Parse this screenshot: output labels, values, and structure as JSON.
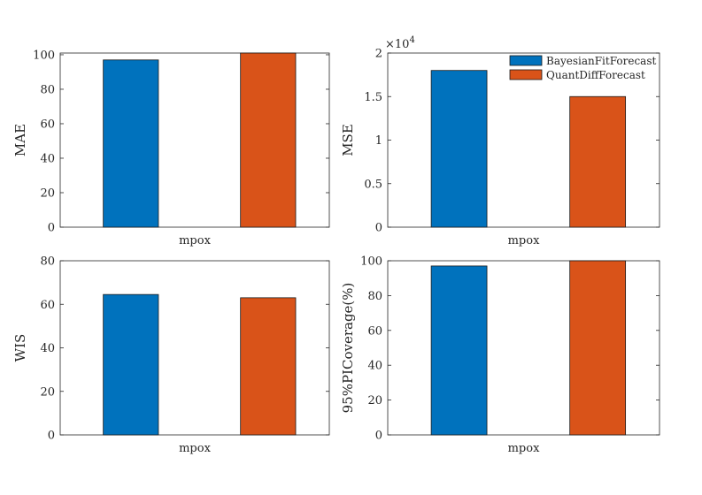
{
  "figure": {
    "legend": [
      {
        "name": "BayesianFitForecast",
        "color": "#0072BD"
      },
      {
        "name": "QuantDiffForecast",
        "color": "#D95319"
      }
    ]
  },
  "chart_data": [
    {
      "type": "bar",
      "title": "",
      "xlabel": "mpox",
      "ylabel": "MAE",
      "categories": [
        "mpox"
      ],
      "series": [
        {
          "name": "BayesianFitForecast",
          "values": [
            97
          ]
        },
        {
          "name": "QuantDiffForecast",
          "values": [
            101
          ]
        }
      ],
      "ylim": [
        0,
        101
      ],
      "yticks": [
        0,
        20,
        40,
        60,
        80,
        100
      ],
      "ytick_labels": [
        "0",
        "20",
        "40",
        "60",
        "80",
        "100"
      ]
    },
    {
      "type": "bar",
      "title": "",
      "xlabel": "mpox",
      "ylabel": "MSE",
      "categories": [
        "mpox"
      ],
      "series": [
        {
          "name": "BayesianFitForecast",
          "values": [
            18000
          ]
        },
        {
          "name": "QuantDiffForecast",
          "values": [
            15000
          ]
        }
      ],
      "ylim": [
        0,
        20000
      ],
      "yticks": [
        0,
        5000,
        10000,
        15000,
        20000
      ],
      "ytick_labels": [
        "0",
        "0.5",
        "1",
        "1.5",
        "2"
      ],
      "y_exponent_label": "×10",
      "y_exponent_power": "4",
      "legend_position": "top-right"
    },
    {
      "type": "bar",
      "title": "",
      "xlabel": "mpox",
      "ylabel": "WIS",
      "categories": [
        "mpox"
      ],
      "series": [
        {
          "name": "BayesianFitForecast",
          "values": [
            64.5
          ]
        },
        {
          "name": "QuantDiffForecast",
          "values": [
            63
          ]
        }
      ],
      "ylim": [
        0,
        80
      ],
      "yticks": [
        0,
        20,
        40,
        60,
        80
      ],
      "ytick_labels": [
        "0",
        "20",
        "40",
        "60",
        "80"
      ]
    },
    {
      "type": "bar",
      "title": "",
      "xlabel": "mpox",
      "ylabel": "95%PICoverage(%)",
      "categories": [
        "mpox"
      ],
      "series": [
        {
          "name": "BayesianFitForecast",
          "values": [
            97
          ]
        },
        {
          "name": "QuantDiffForecast",
          "values": [
            100
          ]
        }
      ],
      "ylim": [
        0,
        100
      ],
      "yticks": [
        0,
        20,
        40,
        60,
        80,
        100
      ],
      "ytick_labels": [
        "0",
        "20",
        "40",
        "60",
        "80",
        "100"
      ]
    }
  ]
}
